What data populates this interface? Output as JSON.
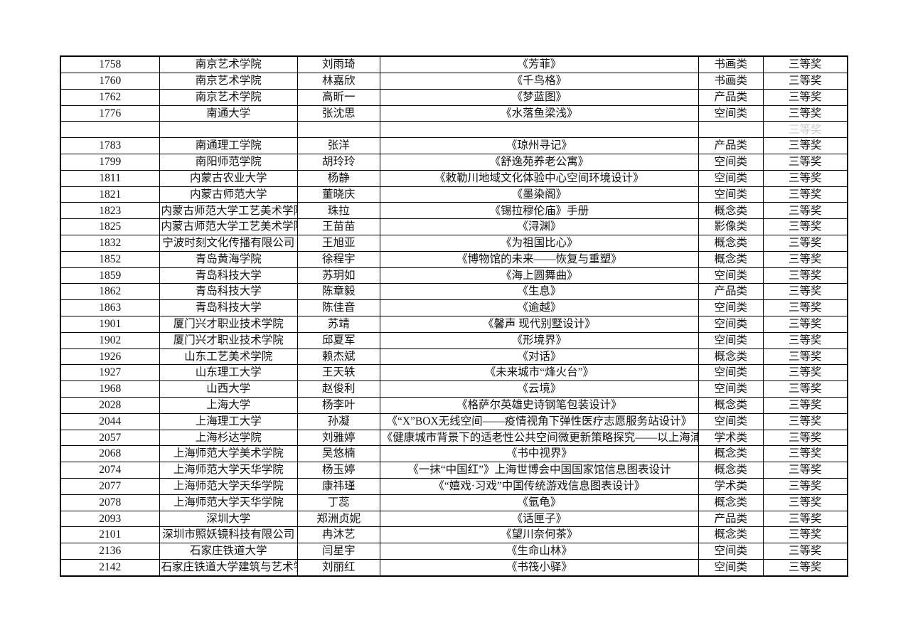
{
  "document": {
    "kind": "scanned-award-list-table",
    "award_level_common": "三等奖"
  },
  "table": {
    "rows": [
      {
        "id": "1758",
        "institution": "南京艺术学院",
        "author": "刘雨琦",
        "title": "《芳菲》",
        "category": "书画类",
        "award": "三等奖"
      },
      {
        "id": "1760",
        "institution": "南京艺术学院",
        "author": "林嘉欣",
        "title": "《千鸟格》",
        "category": "书画类",
        "award": "三等奖"
      },
      {
        "id": "1762",
        "institution": "南京艺术学院",
        "author": "高昕一",
        "title": "《梦蓝图》",
        "category": "产品类",
        "award": "三等奖"
      },
      {
        "id": "1776",
        "institution": "南通大学",
        "author": "张沈思",
        "title": "《水落鱼梁浅》",
        "category": "空间类",
        "award": "三等奖"
      },
      {
        "id": "",
        "institution": "",
        "author": "",
        "title": "",
        "category": "",
        "award": "三等奖",
        "ghost": true
      },
      {
        "id": "1783",
        "institution": "南通理工学院",
        "author": "张洋",
        "title": "《琼州寻记》",
        "category": "产品类",
        "award": "三等奖"
      },
      {
        "id": "1799",
        "institution": "南阳师范学院",
        "author": "胡玲玲",
        "title": "《舒逸苑养老公寓》",
        "category": "空间类",
        "award": "三等奖"
      },
      {
        "id": "1811",
        "institution": "内蒙古农业大学",
        "author": "杨静",
        "title": "《敕勒川地域文化体验中心空间环境设计》",
        "category": "空间类",
        "award": "三等奖"
      },
      {
        "id": "1821",
        "institution": "内蒙古师范大学",
        "author": "董晓庆",
        "title": "《墨染阁》",
        "category": "空间类",
        "award": "三等奖"
      },
      {
        "id": "1823",
        "institution": "内蒙古师范大学工艺美术学院",
        "author": "珠拉",
        "title": "《锡拉穆伦庙》手册",
        "category": "概念类",
        "award": "三等奖"
      },
      {
        "id": "1825",
        "institution": "内蒙古师范大学工艺美术学院",
        "author": "王苗苗",
        "title": "《浔渊》",
        "category": "影像类",
        "award": "三等奖"
      },
      {
        "id": "1832",
        "institution": "宁波时刻文化传播有限公司",
        "author": "王旭亚",
        "title": "《为祖国比心》",
        "category": "概念类",
        "award": "三等奖"
      },
      {
        "id": "1852",
        "institution": "青岛黄海学院",
        "author": "徐程宇",
        "title": "《博物馆的未来——恢复与重塑》",
        "category": "概念类",
        "award": "三等奖"
      },
      {
        "id": "1859",
        "institution": "青岛科技大学",
        "author": "苏玥如",
        "title": "《海上圆舞曲》",
        "category": "空间类",
        "award": "三等奖"
      },
      {
        "id": "1862",
        "institution": "青岛科技大学",
        "author": "陈章毅",
        "title": "《生息》",
        "category": "产品类",
        "award": "三等奖"
      },
      {
        "id": "1863",
        "institution": "青岛科技大学",
        "author": "陈佳音",
        "title": "《逾越》",
        "category": "空间类",
        "award": "三等奖"
      },
      {
        "id": "1901",
        "institution": "厦门兴才职业技术学院",
        "author": "苏靖",
        "title": "《馨声 现代别墅设计》",
        "category": "空间类",
        "award": "三等奖"
      },
      {
        "id": "1902",
        "institution": "厦门兴才职业技术学院",
        "author": "邱夏军",
        "title": "《形境界》",
        "category": "空间类",
        "award": "三等奖"
      },
      {
        "id": "1926",
        "institution": "山东工艺美术学院",
        "author": "赖杰斌",
        "title": "《对话》",
        "category": "概念类",
        "award": "三等奖"
      },
      {
        "id": "1927",
        "institution": "山东理工大学",
        "author": "王天轶",
        "title": "《未来城市“烽火台”》",
        "category": "空间类",
        "award": "三等奖"
      },
      {
        "id": "1968",
        "institution": "山西大学",
        "author": "赵俊利",
        "title": "《云境》",
        "category": "空间类",
        "award": "三等奖"
      },
      {
        "id": "2028",
        "institution": "上海大学",
        "author": "杨李叶",
        "title": "《格萨尔英雄史诗钢笔包装设计》",
        "category": "概念类",
        "award": "三等奖"
      },
      {
        "id": "2044",
        "institution": "上海理工大学",
        "author": "孙凝",
        "title": "《“X”BOX无线空间——疫情视角下弹性医疗志愿服务站设计》",
        "category": "空间类",
        "award": "三等奖",
        "size": "s"
      },
      {
        "id": "2057",
        "institution": "上海杉达学院",
        "author": "刘雅婷",
        "title": "《健康城市背景下的适老性公共空间微更新策略探究——以上海浦东新区古李公园为例》",
        "category": "学术类",
        "award": "三等奖",
        "size": "xs"
      },
      {
        "id": "2068",
        "institution": "上海师范大学美术学院",
        "author": "吴悠楠",
        "title": "《书中视界》",
        "category": "概念类",
        "award": "三等奖"
      },
      {
        "id": "2074",
        "institution": "上海师范大学天华学院",
        "author": "杨玉婷",
        "title": "《一抹“中国红”》上海世博会中国国家馆信息图表设计",
        "category": "概念类",
        "award": "三等奖",
        "size": "s"
      },
      {
        "id": "2077",
        "institution": "上海师范大学天华学院",
        "author": "康祎瑾",
        "title": "《“嬉戏·习戏”中国传统游戏信息图表设计》",
        "category": "学术类",
        "award": "三等奖"
      },
      {
        "id": "2078",
        "institution": "上海师范大学天华学院",
        "author": "丁蕊",
        "title": "《氩龟》",
        "category": "概念类",
        "award": "三等奖"
      },
      {
        "id": "2093",
        "institution": "深圳大学",
        "author": "郑洲贞妮",
        "title": "《话匣子》",
        "category": "产品类",
        "award": "三等奖"
      },
      {
        "id": "2101",
        "institution": "深圳市照妖镜科技有限公司",
        "author": "冉沐艺",
        "title": "《望川奈何茶》",
        "category": "概念类",
        "award": "三等奖"
      },
      {
        "id": "2136",
        "institution": "石家庄铁道大学",
        "author": "闫星宇",
        "title": "《生命山林》",
        "category": "空间类",
        "award": "三等奖"
      },
      {
        "id": "2142",
        "institution": "石家庄铁道大学建筑与艺术学院",
        "author": "刘丽红",
        "title": "《书筏小驿》",
        "category": "空间类",
        "award": "三等奖"
      }
    ]
  }
}
